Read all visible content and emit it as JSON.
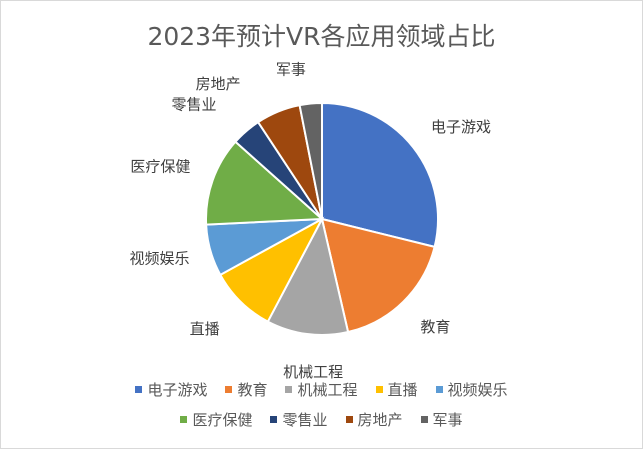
{
  "chart_data": {
    "type": "pie",
    "title": "2023年预计VR各应用领域占比",
    "categories": [
      "电子游戏",
      "教育",
      "机械工程",
      "直播",
      "视频娱乐",
      "医疗保健",
      "零售业",
      "房地产",
      "军事"
    ],
    "values": [
      28,
      17,
      11,
      9,
      7,
      12,
      4,
      6,
      3
    ],
    "colors": [
      "#4472C4",
      "#ED7D31",
      "#A5A5A5",
      "#FFC000",
      "#5B9BD5",
      "#70AD47",
      "#264478",
      "#9E480E",
      "#636363"
    ],
    "legend_position": "bottom"
  }
}
